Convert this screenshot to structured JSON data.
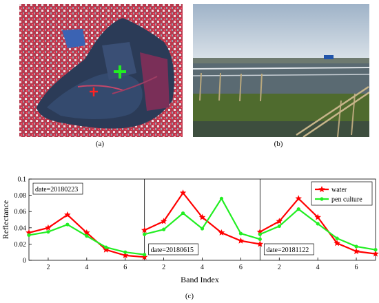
{
  "captions": {
    "a": "(a)",
    "b": "(b)",
    "c": "(c)"
  },
  "colors": {
    "water": "#ff0000",
    "pen_culture": "#22ee22"
  },
  "chart_data": {
    "type": "line",
    "ylabel": "Reflectance",
    "xlabel": "Band Index",
    "ylim": [
      0,
      0.1
    ],
    "xlim": [
      1,
      7
    ],
    "yticks": [
      "0",
      "0.02",
      "0.04",
      "0.06",
      "0.08",
      "0.1"
    ],
    "xticks": [
      "2",
      "4",
      "6"
    ],
    "legend": {
      "placement": "top-right",
      "entries": [
        "water",
        "pen culture"
      ]
    },
    "panels": [
      {
        "date_label": "date=20180223",
        "label_position": "top-left",
        "series": [
          {
            "name": "water",
            "x": [
              1,
              2,
              3,
              4,
              5,
              6,
              7
            ],
            "y": [
              0.034,
              0.04,
              0.056,
              0.034,
              0.013,
              0.006,
              0.004
            ]
          },
          {
            "name": "pen culture",
            "x": [
              1,
              2,
              3,
              4,
              5,
              6,
              7
            ],
            "y": [
              0.031,
              0.035,
              0.044,
              0.03,
              0.016,
              0.01,
              0.007
            ]
          }
        ]
      },
      {
        "date_label": "date=20180615",
        "label_position": "bottom-left",
        "series": [
          {
            "name": "water",
            "x": [
              1,
              2,
              3,
              4,
              5,
              6,
              7
            ],
            "y": [
              0.037,
              0.048,
              0.083,
              0.053,
              0.034,
              0.024,
              0.02
            ]
          },
          {
            "name": "pen culture",
            "x": [
              1,
              2,
              3,
              4,
              5,
              6,
              7
            ],
            "y": [
              0.032,
              0.038,
              0.058,
              0.039,
              0.076,
              0.033,
              0.026
            ]
          }
        ]
      },
      {
        "date_label": "date=20181122",
        "label_position": "bottom-left",
        "series": [
          {
            "name": "water",
            "x": [
              1,
              2,
              3,
              4,
              5,
              6,
              7
            ],
            "y": [
              0.035,
              0.048,
              0.076,
              0.053,
              0.021,
              0.011,
              0.008
            ]
          },
          {
            "name": "pen culture",
            "x": [
              1,
              2,
              3,
              4,
              5,
              6,
              7
            ],
            "y": [
              0.032,
              0.042,
              0.063,
              0.045,
              0.027,
              0.017,
              0.013
            ]
          }
        ]
      }
    ]
  }
}
